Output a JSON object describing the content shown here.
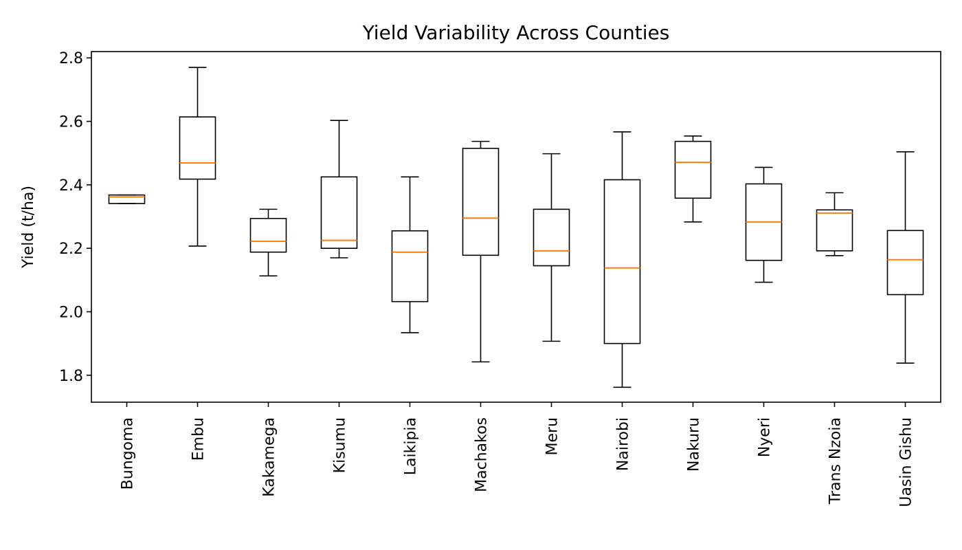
{
  "chart_data": {
    "type": "box",
    "title": "Yield Variability Across Counties",
    "xlabel": "",
    "ylabel": "Yield (t/ha)",
    "ylim": [
      1.715,
      2.82
    ],
    "yticks": [
      "1.8",
      "2.0",
      "2.2",
      "2.4",
      "2.6",
      "2.8"
    ],
    "grid": false,
    "colors": {
      "box": "#000000",
      "median": "#ff7f0e"
    },
    "categories": [
      "Bungoma",
      "Embu",
      "Kakamega",
      "Kisumu",
      "Laikipia",
      "Machakos",
      "Meru",
      "Nairobi",
      "Nakuru",
      "Nyeri",
      "Trans Nzoia",
      "Uasin Gishu"
    ],
    "boxes": [
      {
        "min": 2.341,
        "q1": 2.341,
        "median": 2.362,
        "q3": 2.368,
        "max": 2.368
      },
      {
        "min": 2.207,
        "q1": 2.418,
        "median": 2.469,
        "q3": 2.614,
        "max": 2.77
      },
      {
        "min": 2.113,
        "q1": 2.188,
        "median": 2.222,
        "q3": 2.294,
        "max": 2.323
      },
      {
        "min": 2.17,
        "q1": 2.2,
        "median": 2.225,
        "q3": 2.425,
        "max": 2.603
      },
      {
        "min": 1.934,
        "q1": 2.032,
        "median": 2.188,
        "q3": 2.255,
        "max": 2.425
      },
      {
        "min": 1.842,
        "q1": 2.178,
        "median": 2.295,
        "q3": 2.515,
        "max": 2.537
      },
      {
        "min": 1.907,
        "q1": 2.145,
        "median": 2.192,
        "q3": 2.323,
        "max": 2.498
      },
      {
        "min": 1.762,
        "q1": 1.9,
        "median": 2.138,
        "q3": 2.416,
        "max": 2.567
      },
      {
        "min": 2.283,
        "q1": 2.358,
        "median": 2.471,
        "q3": 2.537,
        "max": 2.554
      },
      {
        "min": 2.093,
        "q1": 2.162,
        "median": 2.283,
        "q3": 2.403,
        "max": 2.455
      },
      {
        "min": 2.177,
        "q1": 2.192,
        "median": 2.311,
        "q3": 2.321,
        "max": 2.375
      },
      {
        "min": 1.838,
        "q1": 2.054,
        "median": 2.164,
        "q3": 2.256,
        "max": 2.504
      }
    ]
  }
}
